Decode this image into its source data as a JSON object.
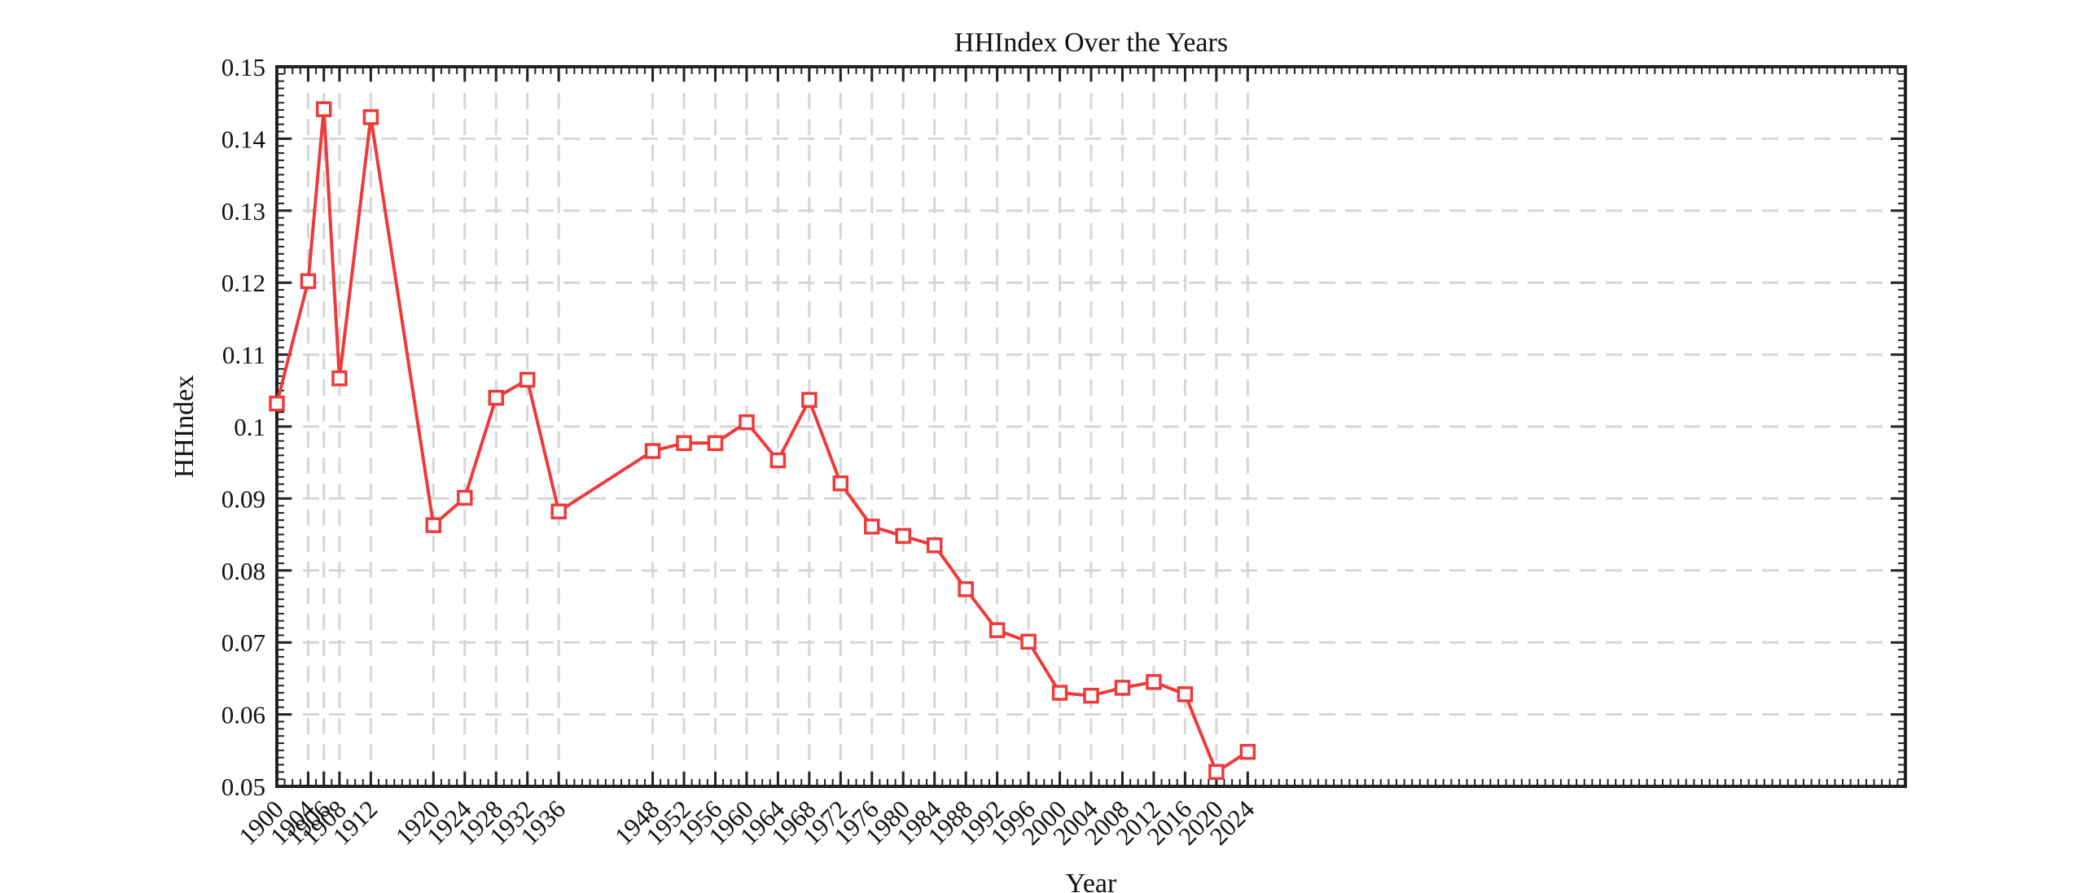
{
  "chart_data": {
    "type": "line",
    "title": "HHIndex Over the Years",
    "xlabel": "Year",
    "ylabel": "HHIndex",
    "xlim": [
      1900,
      2108
    ],
    "ylim": [
      0.05,
      0.15
    ],
    "grid": true,
    "legend": "none",
    "x": [
      1900,
      1904,
      1906,
      1908,
      1912,
      1920,
      1924,
      1928,
      1932,
      1936,
      1948,
      1952,
      1956,
      1960,
      1964,
      1968,
      1972,
      1976,
      1980,
      1984,
      1988,
      1992,
      1996,
      2000,
      2004,
      2008,
      2012,
      2016,
      2020,
      2024
    ],
    "x_tick_labels": [
      "1900",
      "1904",
      "1906",
      "1908",
      "1912",
      "1920",
      "1924",
      "1928",
      "1932",
      "1936",
      "1948",
      "1952",
      "1956",
      "1960",
      "1964",
      "1968",
      "1972",
      "1976",
      "1980",
      "1984",
      "1988",
      "1992",
      "1996",
      "2000",
      "2004",
      "2008",
      "2012",
      "2016",
      "2020",
      "2024"
    ],
    "y_ticks": [
      0.05,
      0.06,
      0.07,
      0.08,
      0.09,
      0.1,
      0.11,
      0.12,
      0.13,
      0.14,
      0.15
    ],
    "y_tick_labels": [
      "0.05",
      "0.06",
      "0.07",
      "0.08",
      "0.09",
      "0.1",
      "0.11",
      "0.12",
      "0.13",
      "0.14",
      "0.15"
    ],
    "series": [
      {
        "color": "#ee3a3a",
        "marker": "square",
        "values": [
          0.1032,
          0.1202,
          0.1441,
          0.1067,
          0.143,
          0.0863,
          0.0901,
          0.104,
          0.1065,
          0.0882,
          0.0966,
          0.0977,
          0.0977,
          0.1006,
          0.0953,
          0.1037,
          0.0921,
          0.0861,
          0.0848,
          0.0835,
          0.0774,
          0.0717,
          0.0701,
          0.063,
          0.0626,
          0.0637,
          0.0645,
          0.0628,
          0.052,
          0.0548
        ]
      }
    ]
  }
}
